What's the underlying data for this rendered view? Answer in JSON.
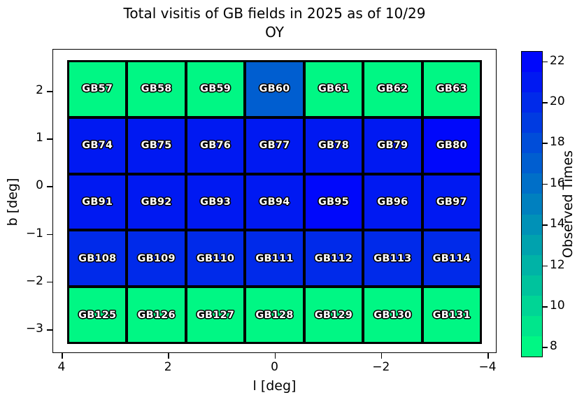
{
  "figure": {
    "title_line1": "Total visitis of GB fields in 2025 as of 10/29",
    "title_line2": "OY"
  },
  "chart_data": {
    "type": "heatmap",
    "title": "Total visitis of GB fields in 2025 as of 10/29 OY",
    "xlabel": "l [deg]",
    "ylabel": "b [deg]",
    "colorbar_label": "Observed Times",
    "colormap": "winter_r",
    "low_color": "#00F684",
    "high_color": "#0008FB",
    "vmin": 7.5,
    "vmax": 22.5,
    "xlim": [
      4.17,
      -4.17
    ],
    "ylim": [
      2.88,
      -3.5
    ],
    "grid_on": false,
    "legend_position": "right-colorbar",
    "xticks": [
      {
        "v": 4,
        "label": "4"
      },
      {
        "v": 2,
        "label": "2"
      },
      {
        "v": 0,
        "label": "0"
      },
      {
        "v": -2,
        "label": "−2"
      },
      {
        "v": -4,
        "label": "−4"
      }
    ],
    "yticks": [
      {
        "v": 2,
        "label": "2"
      },
      {
        "v": 1,
        "label": "1"
      },
      {
        "v": 0,
        "label": "0"
      },
      {
        "v": -1,
        "label": "−1"
      },
      {
        "v": -2,
        "label": "−2"
      },
      {
        "v": -3,
        "label": "−3"
      }
    ],
    "colorbar_ticks": [
      {
        "v": 8,
        "label": "8"
      },
      {
        "v": 10,
        "label": "10"
      },
      {
        "v": 12,
        "label": "12"
      },
      {
        "v": 14,
        "label": "14"
      },
      {
        "v": 16,
        "label": "16"
      },
      {
        "v": 18,
        "label": "18"
      },
      {
        "v": 20,
        "label": "20"
      },
      {
        "v": 22,
        "label": "22"
      }
    ],
    "rows": [
      {
        "cells": [
          {
            "label": "GB57",
            "value": 8
          },
          {
            "label": "GB58",
            "value": 8
          },
          {
            "label": "GB59",
            "value": 8
          },
          {
            "label": "GB60",
            "value": 17
          },
          {
            "label": "GB61",
            "value": 8
          },
          {
            "label": "GB62",
            "value": 8
          },
          {
            "label": "GB63",
            "value": 8
          }
        ]
      },
      {
        "cells": [
          {
            "label": "GB74",
            "value": 21
          },
          {
            "label": "GB75",
            "value": 21
          },
          {
            "label": "GB76",
            "value": 21
          },
          {
            "label": "GB77",
            "value": 21
          },
          {
            "label": "GB78",
            "value": 21
          },
          {
            "label": "GB79",
            "value": 21
          },
          {
            "label": "GB80",
            "value": 22
          }
        ]
      },
      {
        "cells": [
          {
            "label": "GB91",
            "value": 21
          },
          {
            "label": "GB92",
            "value": 21
          },
          {
            "label": "GB93",
            "value": 21
          },
          {
            "label": "GB94",
            "value": 21
          },
          {
            "label": "GB95",
            "value": 22
          },
          {
            "label": "GB96",
            "value": 21
          },
          {
            "label": "GB97",
            "value": 21
          }
        ]
      },
      {
        "cells": [
          {
            "label": "GB108",
            "value": 20
          },
          {
            "label": "GB109",
            "value": 20
          },
          {
            "label": "GB110",
            "value": 20
          },
          {
            "label": "GB111",
            "value": 20
          },
          {
            "label": "GB112",
            "value": 20
          },
          {
            "label": "GB113",
            "value": 20
          },
          {
            "label": "GB114",
            "value": 20
          }
        ]
      },
      {
        "cells": [
          {
            "label": "GB125",
            "value": 8
          },
          {
            "label": "GB126",
            "value": 8
          },
          {
            "label": "GB127",
            "value": 8
          },
          {
            "label": "GB128",
            "value": 8
          },
          {
            "label": "GB129",
            "value": 8
          },
          {
            "label": "GB130",
            "value": 8
          },
          {
            "label": "GB131",
            "value": 8
          }
        ]
      }
    ]
  }
}
